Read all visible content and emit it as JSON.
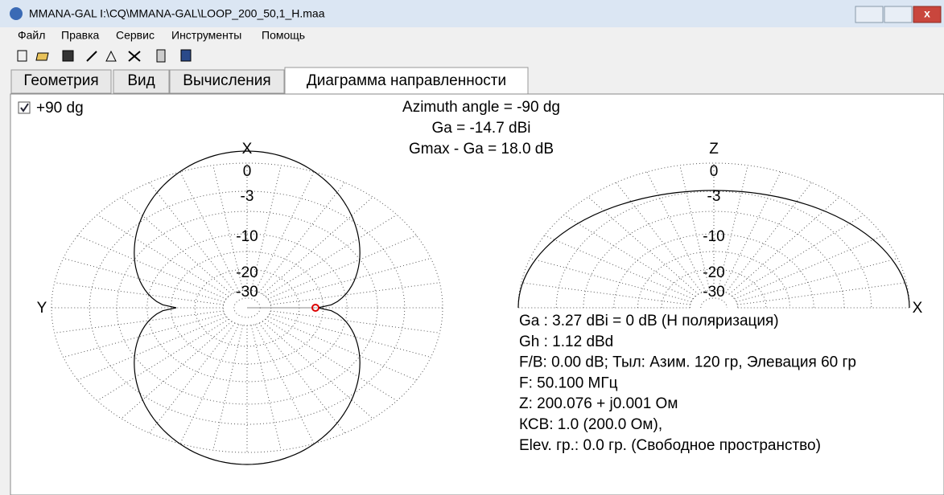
{
  "window": {
    "title": "MMANA-GAL I:\\CQ\\MMANA-GAL\\LOOP_200_50,1_H.maa"
  },
  "menu": [
    "Файл",
    "Правка",
    "Сервис",
    "Инструменты",
    "Помощь"
  ],
  "tabs": [
    "Геометрия",
    "Вид",
    "Вычисления",
    "Диаграмма направленности"
  ],
  "checkbox": {
    "label": "+90 dg"
  },
  "header": [
    "Azimuth angle = -90 dg",
    "Ga = -14.7 dBi",
    "Gmax - Ga = 18.0 dB"
  ],
  "left_plot": {
    "top_label": "X",
    "side_label": "Y",
    "ring_labels": [
      "0",
      "-3",
      "-10",
      "-20",
      "-30"
    ]
  },
  "right_plot": {
    "top_label": "Z",
    "side_label": "X",
    "ring_labels": [
      "0",
      "-3",
      "-10",
      "-20",
      "-30"
    ]
  },
  "info": [
    "Ga : 3.27 dBi = 0 dB  (H поляризация)",
    "Gh : 1.12 dBd",
    "F/B: 0.00 dB; Тыл: Азим. 120 гр, Элевация 60 гр",
    "F: 50.100 МГц",
    "Z: 200.076 + j0.001 Ом",
    "КСВ: 1.0 (200.0 Ом),",
    "Elev. гр.: 0.0 гр. (Свободное пространство)"
  ]
}
